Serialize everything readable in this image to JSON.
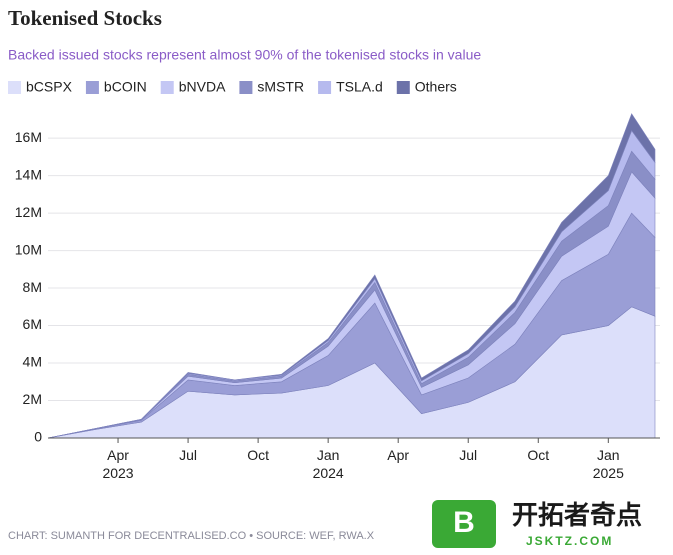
{
  "chart_data": {
    "type": "stacked_area",
    "title": "Tokenised Stocks",
    "subtitle": "Backed issued stocks represent almost 90% of the tokenised stocks in value",
    "source": "CHART: SUMANTH FOR DECENTRALISED.CO • SOURCE: WEF, RWA.X",
    "watermark": "开拓者奇点",
    "watermark_url": "JSKTZ.COM",
    "x": [
      "2023-01",
      "2023-03",
      "2023-05",
      "2023-07",
      "2023-09",
      "2023-11",
      "2024-01",
      "2024-03",
      "2024-05",
      "2024-07",
      "2024-09",
      "2024-11",
      "2025-01",
      "2025-02",
      "2025-03"
    ],
    "xlim": [
      "2023-01",
      "2025-03"
    ],
    "xticks": [
      {
        "value": "2023-04",
        "label": "Apr 2023"
      },
      {
        "value": "2023-07",
        "label": "Jul"
      },
      {
        "value": "2023-10",
        "label": "Oct"
      },
      {
        "value": "2024-01",
        "label": "Jan 2024"
      },
      {
        "value": "2024-04",
        "label": "Apr"
      },
      {
        "value": "2024-07",
        "label": "Jul"
      },
      {
        "value": "2024-10",
        "label": "Oct"
      },
      {
        "value": "2025-01",
        "label": "Jan 2025"
      }
    ],
    "ylim": [
      0,
      17.5
    ],
    "yticks": [
      0,
      {
        "value": 2,
        "label": "2M"
      },
      {
        "value": 4,
        "label": "4M"
      },
      {
        "value": 6,
        "label": "6M"
      },
      {
        "value": 8,
        "label": "8M"
      },
      {
        "value": 10,
        "label": "10M"
      },
      {
        "value": 12,
        "label": "12M"
      },
      {
        "value": 14,
        "label": "14M"
      },
      {
        "value": 16,
        "label": "16M"
      }
    ],
    "grid": true,
    "legend": "top",
    "series": [
      {
        "name": "bCSPX",
        "color": "#dcdffa",
        "values": [
          0,
          0.45,
          0.85,
          2.5,
          2.3,
          2.4,
          2.8,
          4.0,
          1.3,
          1.9,
          3.0,
          5.5,
          6.0,
          7.0,
          6.5
        ]
      },
      {
        "name": "bCOIN",
        "color": "#9a9ed6",
        "values": [
          0,
          0.03,
          0.1,
          0.6,
          0.5,
          0.6,
          1.6,
          3.2,
          1.0,
          1.3,
          2.0,
          2.9,
          3.8,
          5.0,
          4.2
        ]
      },
      {
        "name": "bNVDA",
        "color": "#c4c7f4",
        "values": [
          0,
          0.01,
          0.03,
          0.2,
          0.15,
          0.2,
          0.5,
          0.7,
          0.4,
          0.7,
          1.1,
          1.3,
          1.5,
          2.2,
          2.1
        ]
      },
      {
        "name": "sMSTR",
        "color": "#8a8fc7",
        "values": [
          0,
          0.01,
          0.01,
          0.1,
          0.1,
          0.1,
          0.2,
          0.4,
          0.2,
          0.4,
          0.6,
          0.8,
          1.1,
          1.1,
          1.0
        ]
      },
      {
        "name": "TSLA.d",
        "color": "#b6baee",
        "values": [
          0,
          0,
          0.01,
          0.05,
          0.05,
          0.05,
          0.1,
          0.2,
          0.15,
          0.2,
          0.3,
          0.5,
          0.8,
          1.1,
          0.9
        ]
      },
      {
        "name": "Others",
        "color": "#6c72a9",
        "values": [
          0,
          0,
          0,
          0.05,
          0,
          0.05,
          0.1,
          0.2,
          0.15,
          0.2,
          0.3,
          0.5,
          0.8,
          0.9,
          0.7
        ]
      }
    ]
  }
}
